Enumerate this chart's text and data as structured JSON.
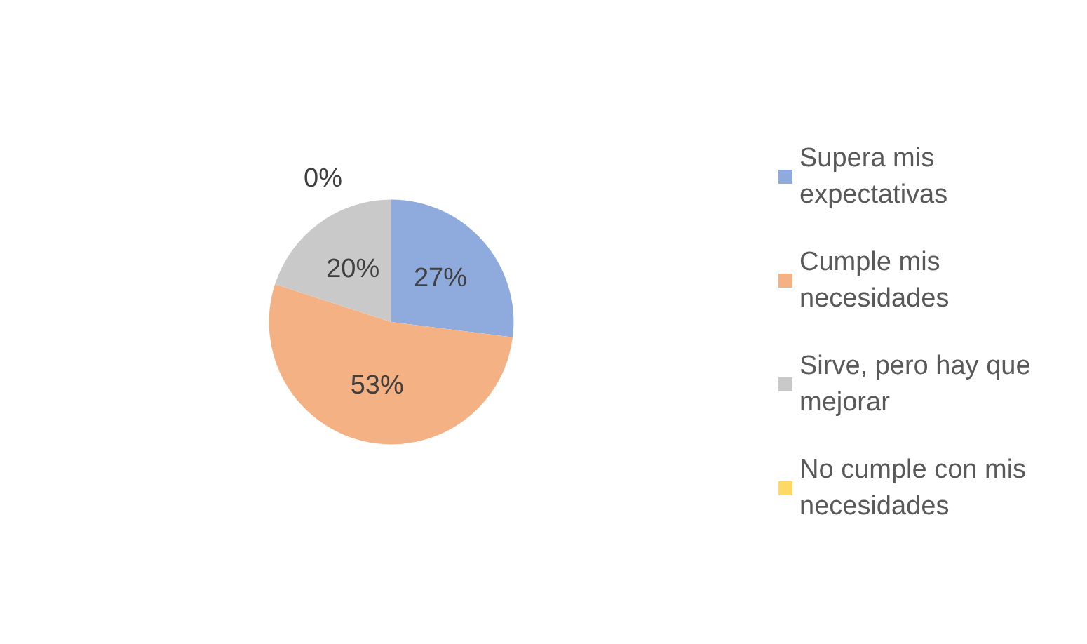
{
  "chart_data": {
    "type": "pie",
    "categories": [
      "Supera mis expectativas",
      "Cumple mis necesidades",
      "Sirve, pero hay que mejorar",
      "No cumple con mis necesidades"
    ],
    "values": [
      27,
      53,
      20,
      0
    ],
    "colors": [
      "#8faadc",
      "#f4b183",
      "#c9c9c9",
      "#ffd966"
    ],
    "value_labels": [
      "27%",
      "53%",
      "20%",
      "0%"
    ],
    "legend": "right"
  }
}
